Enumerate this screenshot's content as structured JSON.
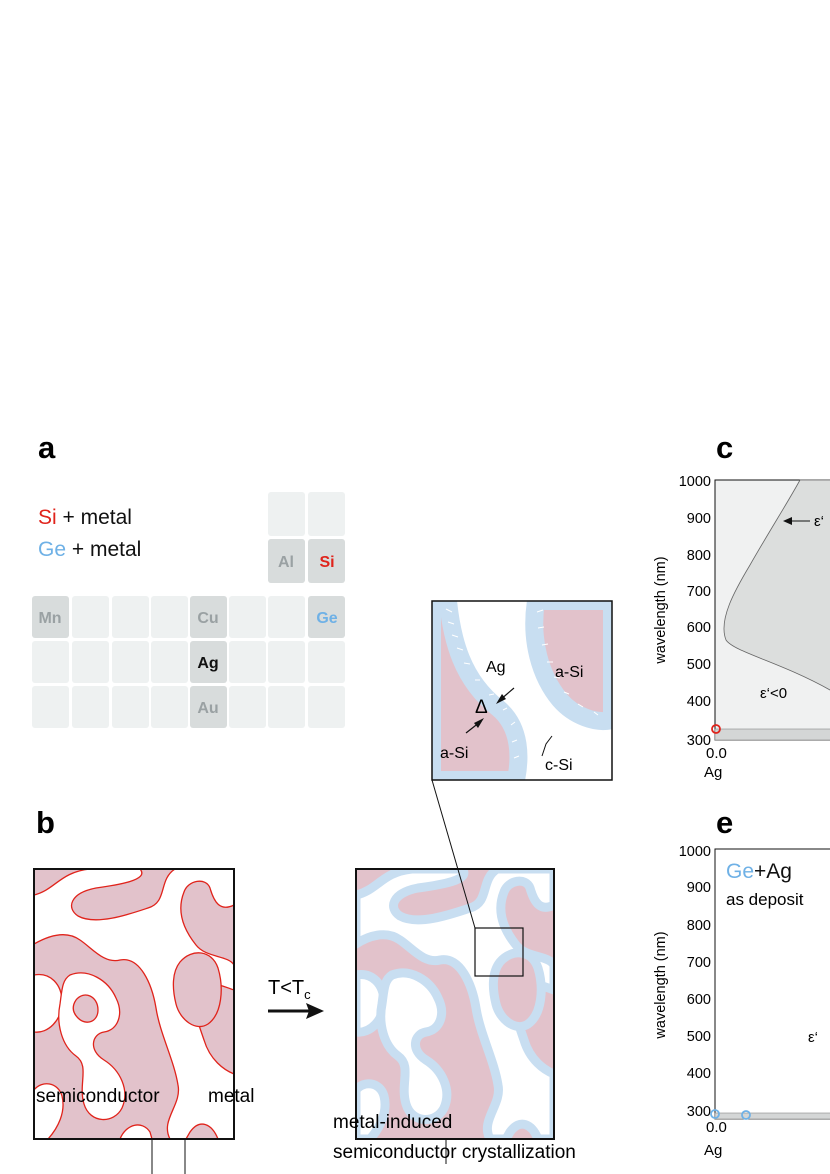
{
  "panels": {
    "a": "a",
    "b": "b",
    "c": "c",
    "e": "e"
  },
  "legend_a": {
    "si_element": "Si",
    "si_suffix": " + metal",
    "ge_element": "Ge",
    "ge_suffix": " + metal"
  },
  "periodic_table": {
    "elements": [
      {
        "symbol": "Al",
        "color": "#9aa1a3"
      },
      {
        "symbol": "Si",
        "color": "#e0231b"
      },
      {
        "symbol": "Mn",
        "color": "#9aa1a3"
      },
      {
        "symbol": "Cu",
        "color": "#9aa1a3"
      },
      {
        "symbol": "Ge",
        "color": "#6fb1e6"
      },
      {
        "symbol": "Ag",
        "color": "#111111"
      },
      {
        "symbol": "Au",
        "color": "#9aa1a3"
      }
    ]
  },
  "diagram_b": {
    "arrow_label": "T<T",
    "arrow_label_sub": "c",
    "left_label_1": "semiconductor",
    "left_label_2": "metal",
    "right_label_line1": "metal-induced",
    "right_label_line2": "semiconductor crystallization"
  },
  "inset": {
    "ag": "Ag",
    "asi_right": "a-Si",
    "asi_left": "a-Si",
    "delta": "Δ",
    "csi": "c-Si"
  },
  "colors": {
    "semiconductor": "#e2c2cb",
    "crystal": "#c8def1",
    "si_red": "#e0231b",
    "ge_blue": "#6fb1e6",
    "plot_fill": "#f0f1f1",
    "plot_inner": "#dcdedd"
  },
  "plot_c": {
    "ylabel": "wavelength (nm)",
    "yticks": [
      "1000",
      "900",
      "800",
      "700",
      "600",
      "500",
      "400",
      "300"
    ],
    "xtick": "0.0",
    "xname": "Ag",
    "annot_arrow": "ε‘",
    "annot_region": "ε‘<0"
  },
  "plot_e": {
    "ylabel": "wavelength (nm)",
    "yticks": [
      "1000",
      "900",
      "800",
      "700",
      "600",
      "500",
      "400",
      "300"
    ],
    "xtick": "0.0",
    "xname": "Ag",
    "legend_ge": "Ge",
    "legend_rest": "+Ag",
    "legend_line2": "as deposit",
    "annot_region": "ε‘"
  }
}
